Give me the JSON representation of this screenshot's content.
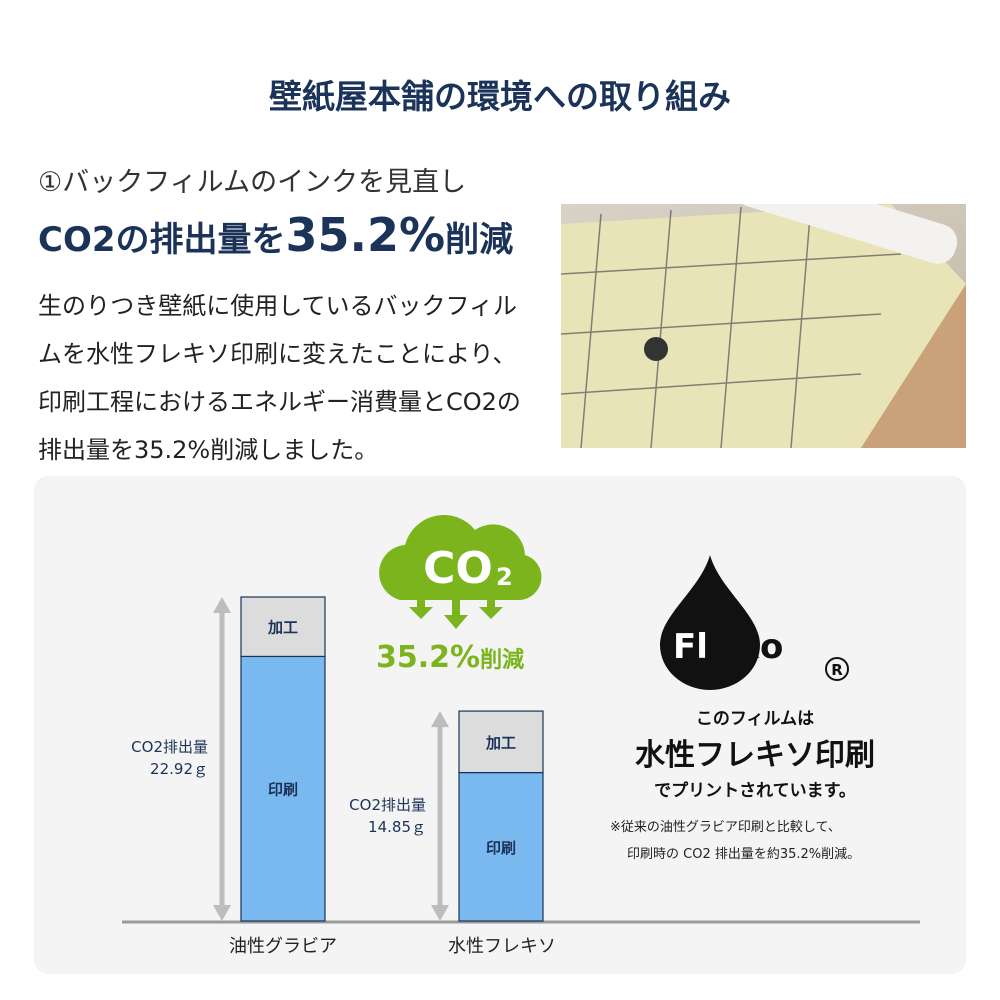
{
  "title": "壁紙屋本舗の環境への取り組み",
  "section": {
    "subheading": "①バックフィルムのインクを見直し",
    "headline_prefix": "CO2の排出量を",
    "headline_value": "35.2%",
    "headline_suffix": "削減",
    "body": "生のりつき壁紙に使用しているバックフィルムを水性フレキソ印刷に変えたことにより、印刷工程におけるエネルギー消費量とCO2の排出量を35.2%削減しました。"
  },
  "badge": {
    "cloud_text": "CO2",
    "reduction": "35.2%",
    "reduction_suffix": "削減",
    "color": "#7cb41e"
  },
  "chart_data": {
    "type": "bar",
    "stacked": true,
    "categories": [
      "油性グラビア",
      "水性フレキソ"
    ],
    "totals": [
      22.92,
      14.85
    ],
    "total_labels": [
      {
        "line1": "CO2排出量",
        "line2": "22.92ｇ"
      },
      {
        "line1": "CO2排出量",
        "line2": "14.85ｇ"
      }
    ],
    "unit": "g",
    "series": [
      {
        "name": "印刷",
        "values": [
          18.7,
          10.5
        ],
        "color": "#7ab8f0"
      },
      {
        "name": "加工",
        "values": [
          4.2,
          4.35
        ],
        "color": "#dcdcdc"
      }
    ]
  },
  "flexo": {
    "logo_text": "Flexo",
    "registered": "®",
    "line1": "このフィルムは",
    "line2": "水性フレキソ印刷",
    "line3": "でプリントされています。",
    "note1": "※従来の油性グラビア印刷と比較して、",
    "note2": "印刷時の CO2 排出量を約35.2%削減。"
  }
}
